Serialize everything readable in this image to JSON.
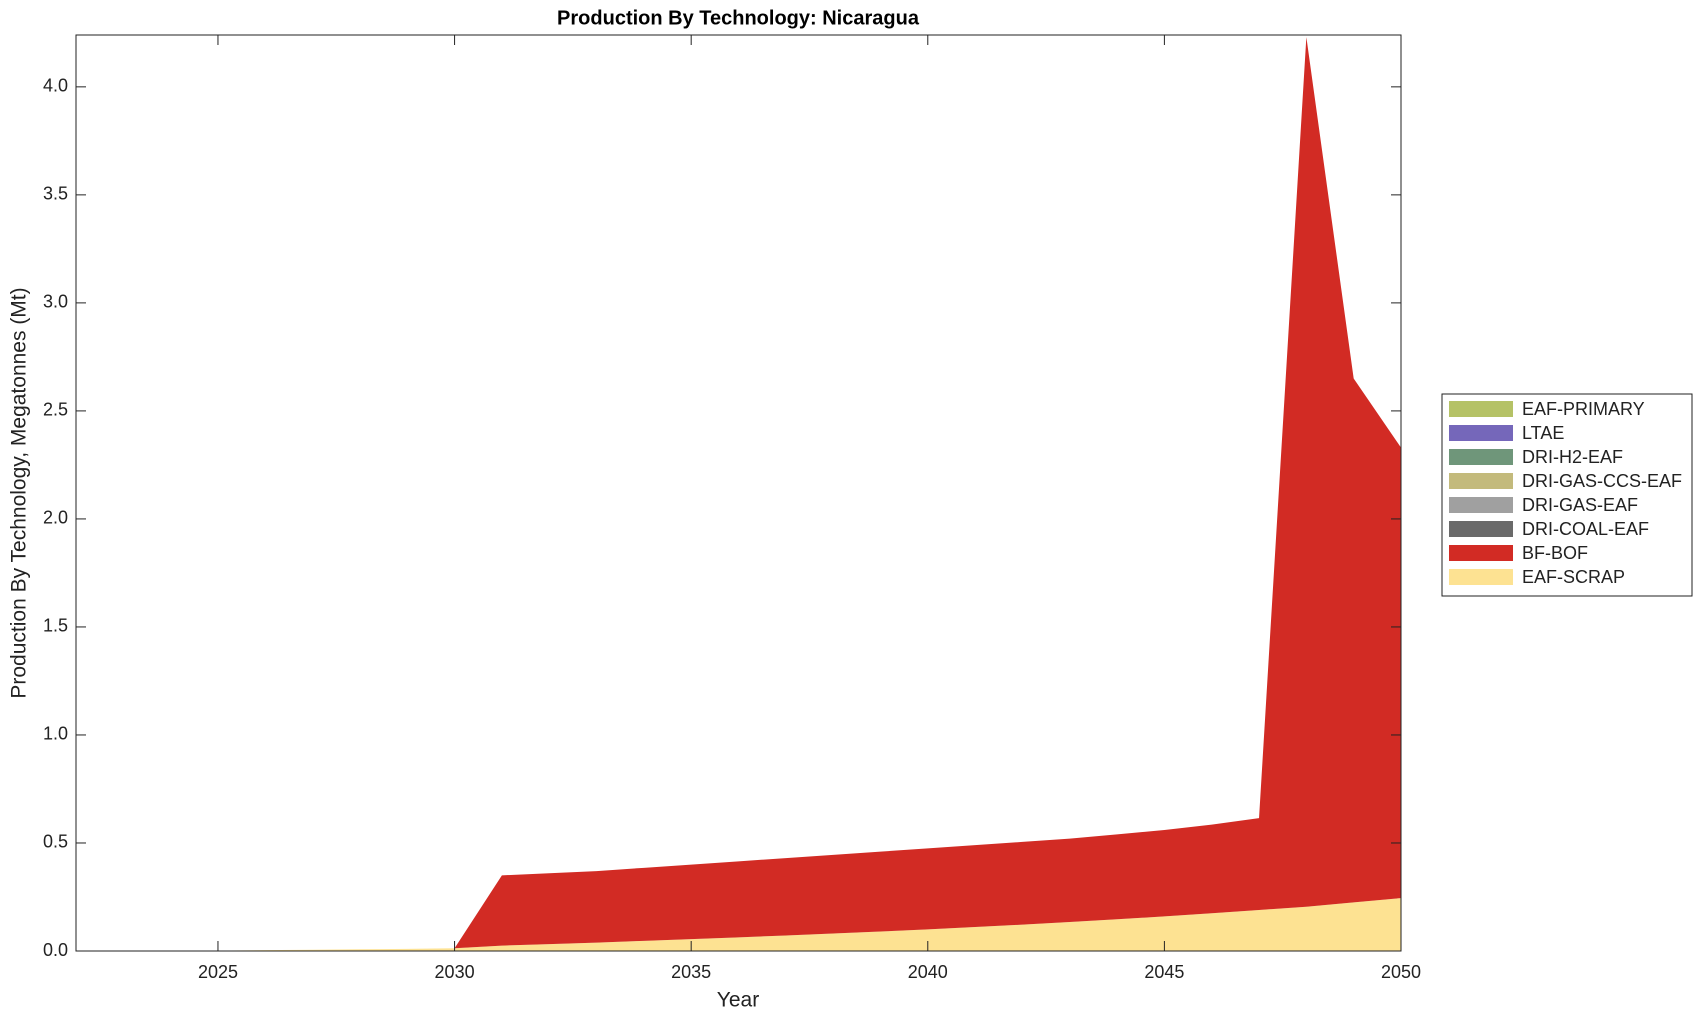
{
  "chart_data": {
    "type": "area",
    "stacked": true,
    "title": "Production By Technology: Nicaragua",
    "x_label": "Year",
    "y_label": "Production By Technology, Megatonnes (Mt)",
    "x": [
      2022,
      2023,
      2024,
      2025,
      2026,
      2027,
      2028,
      2029,
      2030,
      2031,
      2032,
      2033,
      2034,
      2035,
      2036,
      2037,
      2038,
      2039,
      2040,
      2041,
      2042,
      2043,
      2044,
      2045,
      2046,
      2047,
      2048,
      2049,
      2050
    ],
    "xlim": [
      2022,
      2050
    ],
    "xticks": [
      2025,
      2030,
      2035,
      2040,
      2045,
      2050
    ],
    "ylim": [
      0,
      4.24
    ],
    "yticks": [
      {
        "value": 0,
        "label": "0.0"
      },
      {
        "value": 0.5,
        "label": "0.5"
      },
      {
        "value": 1,
        "label": "1.0"
      },
      {
        "value": 1.5,
        "label": "1.5"
      },
      {
        "value": 2,
        "label": "2.0"
      },
      {
        "value": 2.5,
        "label": "2.5"
      },
      {
        "value": 3,
        "label": "3.0"
      },
      {
        "value": 3.5,
        "label": "3.5"
      },
      {
        "value": 4,
        "label": "4.0"
      }
    ],
    "legend": "right",
    "series": [
      {
        "name": "EAF-PRIMARY",
        "color": "#b5c266",
        "values": [
          0,
          0,
          0,
          0,
          0,
          0,
          0,
          0,
          0,
          0,
          0,
          0,
          0,
          0,
          0,
          0,
          0,
          0,
          0,
          0,
          0,
          0,
          0,
          0,
          0,
          0,
          0,
          0,
          0
        ]
      },
      {
        "name": "LTAE",
        "color": "#7567ba",
        "values": [
          0,
          0,
          0,
          0,
          0,
          0,
          0,
          0,
          0,
          0,
          0,
          0,
          0,
          0,
          0,
          0,
          0,
          0,
          0,
          0,
          0,
          0,
          0,
          0,
          0,
          0,
          0,
          0,
          0
        ]
      },
      {
        "name": "DRI-H2-EAF",
        "color": "#6f967a",
        "values": [
          0,
          0,
          0,
          0,
          0,
          0,
          0,
          0,
          0,
          0,
          0,
          0,
          0,
          0,
          0,
          0,
          0,
          0,
          0,
          0,
          0,
          0,
          0,
          0,
          0,
          0,
          0,
          0,
          0
        ]
      },
      {
        "name": "DRI-GAS-CCS-EAF",
        "color": "#c3ba7c",
        "values": [
          0,
          0,
          0,
          0,
          0,
          0,
          0,
          0,
          0,
          0,
          0,
          0,
          0,
          0,
          0,
          0,
          0,
          0,
          0,
          0,
          0,
          0,
          0,
          0,
          0,
          0,
          0,
          0,
          0
        ]
      },
      {
        "name": "DRI-GAS-EAF",
        "color": "#a0a0a0",
        "values": [
          0,
          0,
          0,
          0,
          0,
          0,
          0,
          0,
          0,
          0,
          0,
          0,
          0,
          0,
          0,
          0,
          0,
          0,
          0,
          0,
          0,
          0,
          0,
          0,
          0,
          0,
          0,
          0,
          0
        ]
      },
      {
        "name": "DRI-COAL-EAF",
        "color": "#6a6a6a",
        "values": [
          0,
          0,
          0,
          0,
          0,
          0,
          0,
          0,
          0,
          0,
          0,
          0,
          0,
          0,
          0,
          0,
          0,
          0,
          0,
          0,
          0,
          0,
          0,
          0,
          0,
          0,
          0,
          0,
          0
        ]
      },
      {
        "name": "BF-BOF",
        "color": "#d22b24",
        "values": [
          0,
          0,
          0,
          0,
          0,
          0,
          0,
          0,
          0,
          0.325,
          0.328,
          0.331,
          0.338,
          0.345,
          0.352,
          0.358,
          0.364,
          0.37,
          0.375,
          0.379,
          0.383,
          0.386,
          0.393,
          0.4,
          0.41,
          0.425,
          4.025,
          2.425,
          2.085
        ]
      },
      {
        "name": "EAF-SCRAP",
        "color": "#fde292",
        "values": [
          0,
          0,
          0.001,
          0.002,
          0.004,
          0.006,
          0.008,
          0.01,
          0.013,
          0.025,
          0.032,
          0.039,
          0.047,
          0.055,
          0.063,
          0.072,
          0.081,
          0.09,
          0.1,
          0.111,
          0.122,
          0.134,
          0.147,
          0.16,
          0.175,
          0.19,
          0.205,
          0.225,
          0.245
        ]
      }
    ]
  }
}
